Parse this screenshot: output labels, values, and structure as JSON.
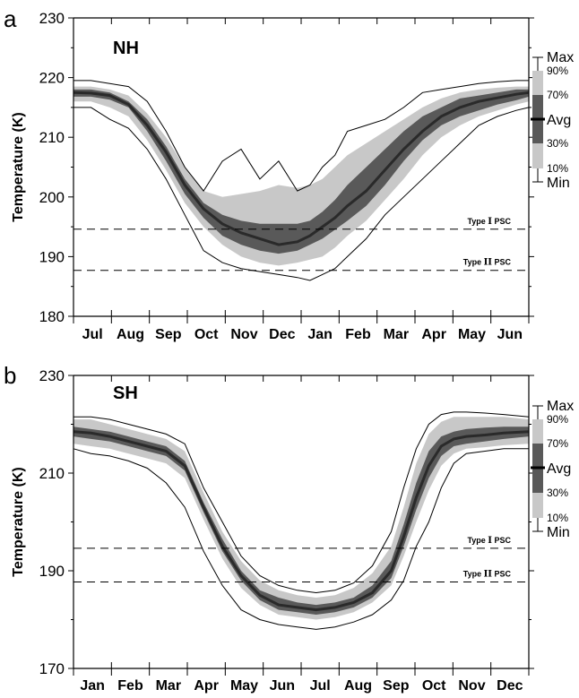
{
  "chart_data": [
    {
      "type": "area",
      "panel_letter": "a",
      "title": "NH",
      "ylabel": "Temperature (K)",
      "xlabel": "",
      "ylim": [
        180,
        230
      ],
      "yticks": [
        180,
        190,
        200,
        210,
        220,
        230
      ],
      "categories": [
        "Jul",
        "Aug",
        "Sep",
        "Oct",
        "Nov",
        "Dec",
        "Jan",
        "Feb",
        "Mar",
        "Apr",
        "May",
        "Jun"
      ],
      "x": [
        1,
        15,
        30,
        45,
        60,
        75,
        90,
        105,
        120,
        135,
        150,
        165,
        180,
        190,
        200,
        210,
        220,
        235,
        250,
        265,
        280,
        295,
        310,
        325,
        340,
        355,
        365
      ],
      "series": [
        {
          "name": "Max",
          "values": [
            219.5,
            219.5,
            219,
            218.5,
            216,
            211,
            205,
            201,
            206,
            208,
            203,
            206,
            201,
            202,
            205,
            207,
            211,
            212,
            213,
            215,
            217.5,
            218,
            218.5,
            219,
            219.3,
            219.5,
            219.5
          ]
        },
        {
          "name": "90%",
          "values": [
            218.5,
            218.5,
            218,
            217,
            214,
            210,
            205,
            201,
            200,
            200.5,
            201,
            202,
            201.5,
            202,
            203,
            205,
            207,
            209,
            211,
            213,
            215,
            216.5,
            217.5,
            218,
            218.3,
            218.5,
            218.5
          ]
        },
        {
          "name": "70%",
          "values": [
            218,
            218,
            217.5,
            216,
            213,
            208.5,
            203,
            199,
            197,
            196,
            195.5,
            195.5,
            195.5,
            196,
            197.5,
            199.5,
            202,
            205,
            208,
            211,
            213.5,
            215,
            216.5,
            217,
            217.5,
            218,
            218
          ]
        },
        {
          "name": "Avg",
          "values": [
            217.5,
            217.4,
            217,
            215.5,
            212,
            207.5,
            202,
            198,
            195.5,
            194,
            193,
            192,
            192.5,
            193.5,
            195,
            196.5,
            198.5,
            201,
            204.5,
            208,
            211,
            213.5,
            215,
            216,
            216.6,
            217.2,
            217.5
          ]
        },
        {
          "name": "30%",
          "values": [
            216.8,
            216.8,
            216.3,
            215,
            211,
            206,
            200.5,
            196.5,
            193.5,
            192,
            191,
            190.5,
            191,
            192,
            193,
            194.5,
            196,
            198.5,
            202,
            206,
            209.5,
            212,
            213.5,
            214.5,
            215.5,
            216.2,
            216.8
          ]
        },
        {
          "name": "10%",
          "values": [
            216,
            216,
            215,
            213.5,
            209.5,
            204.5,
            199,
            195,
            192,
            190,
            189,
            188.5,
            189,
            189.5,
            190,
            191.5,
            193.5,
            196,
            199.5,
            203,
            207,
            210,
            212,
            213.5,
            214.5,
            215.5,
            216
          ]
        },
        {
          "name": "Min",
          "values": [
            215,
            215,
            213,
            211.5,
            208,
            203,
            197,
            191,
            189,
            188,
            187.5,
            187,
            186.5,
            186,
            187,
            188,
            190,
            193,
            197,
            200,
            203,
            206,
            209,
            212,
            213.5,
            214.5,
            215
          ]
        }
      ],
      "reference_lines": [
        {
          "label_parts": [
            "Type ",
            "I",
            " PSC"
          ],
          "y": 194.6
        },
        {
          "label_parts": [
            "Type ",
            "II",
            " PSC"
          ],
          "y": 187.7
        }
      ]
    },
    {
      "type": "area",
      "panel_letter": "b",
      "title": "SH",
      "ylabel": "Temperature (K)",
      "xlabel": "",
      "ylim": [
        170,
        230
      ],
      "yticks": [
        170,
        190,
        210,
        230
      ],
      "categories": [
        "Jan",
        "Feb",
        "Mar",
        "Apr",
        "May",
        "Jun",
        "Jul",
        "Aug",
        "Sep",
        "Oct",
        "Nov",
        "Dec"
      ],
      "x": [
        1,
        15,
        30,
        45,
        60,
        75,
        90,
        105,
        120,
        135,
        150,
        165,
        180,
        195,
        210,
        225,
        240,
        255,
        265,
        275,
        285,
        295,
        305,
        315,
        330,
        345,
        365
      ],
      "series": [
        {
          "name": "Max",
          "values": [
            221.5,
            221.5,
            221,
            220,
            219,
            218,
            216,
            207,
            200,
            193,
            189,
            187,
            186,
            185.5,
            186,
            187.5,
            191,
            198,
            207,
            215,
            220,
            222,
            222.5,
            222.5,
            222.3,
            222,
            221.5
          ]
        },
        {
          "name": "90%",
          "values": [
            221,
            221,
            220,
            219,
            218,
            217,
            214.5,
            206,
            198,
            192,
            188,
            186,
            185,
            184.5,
            185,
            186.5,
            189.5,
            195,
            203,
            212,
            218,
            220.5,
            221.5,
            221.5,
            221.5,
            221.5,
            221
          ]
        },
        {
          "name": "70%",
          "values": [
            219.5,
            219,
            218.5,
            217.5,
            216.5,
            215.5,
            212.5,
            204,
            196.5,
            190,
            186,
            184.5,
            183.5,
            183,
            183.5,
            184.5,
            187,
            192,
            199.5,
            208,
            214.5,
            217.5,
            218.5,
            219,
            219.3,
            219.5,
            219.5
          ]
        },
        {
          "name": "Avg",
          "values": [
            218.5,
            218.2,
            217.5,
            216.5,
            215.5,
            214.5,
            211.5,
            203,
            195,
            189,
            185,
            183,
            182.5,
            182,
            182.5,
            183.5,
            185.5,
            190,
            197,
            205,
            211.5,
            215.5,
            217,
            217.5,
            217.8,
            218.2,
            218.5
          ]
        },
        {
          "name": "30%",
          "values": [
            217.5,
            217,
            216.5,
            215.5,
            214.5,
            213.5,
            210.5,
            202,
            194,
            188,
            184,
            182,
            181.5,
            181,
            181.5,
            182.5,
            184.5,
            188.5,
            195,
            202.5,
            209,
            213.5,
            215.5,
            216,
            216.5,
            217,
            217.5
          ]
        },
        {
          "name": "10%",
          "values": [
            216,
            215.5,
            215,
            214,
            213,
            212,
            209,
            200.5,
            192.5,
            186.5,
            183,
            181,
            180.5,
            180,
            180.5,
            181.5,
            183.5,
            187,
            193,
            200,
            206.5,
            211.5,
            214,
            215,
            215.3,
            215.7,
            216
          ]
        },
        {
          "name": "Min",
          "values": [
            215,
            214,
            213.5,
            212.5,
            211,
            208,
            203,
            194,
            187,
            182,
            180,
            179,
            178.5,
            178,
            178.5,
            179.5,
            181,
            184,
            188,
            195,
            200,
            207,
            212,
            214,
            214.5,
            215,
            215
          ]
        }
      ],
      "reference_lines": [
        {
          "label_parts": [
            "Type ",
            "I",
            " PSC"
          ],
          "y": 194.6
        },
        {
          "label_parts": [
            "Type ",
            "II",
            " PSC"
          ],
          "y": 187.7
        }
      ]
    }
  ],
  "legend": {
    "max_label": "Max",
    "p90_label": "90%",
    "p70_label": "70%",
    "avg_label": "Avg",
    "p30_label": "30%",
    "p10_label": "10%",
    "min_label": "Min"
  },
  "colors": {
    "band_outer": "#c8c8c8",
    "band_inner": "#595959",
    "avg_line": "#2a2a2a",
    "minmax_line": "#000000"
  }
}
